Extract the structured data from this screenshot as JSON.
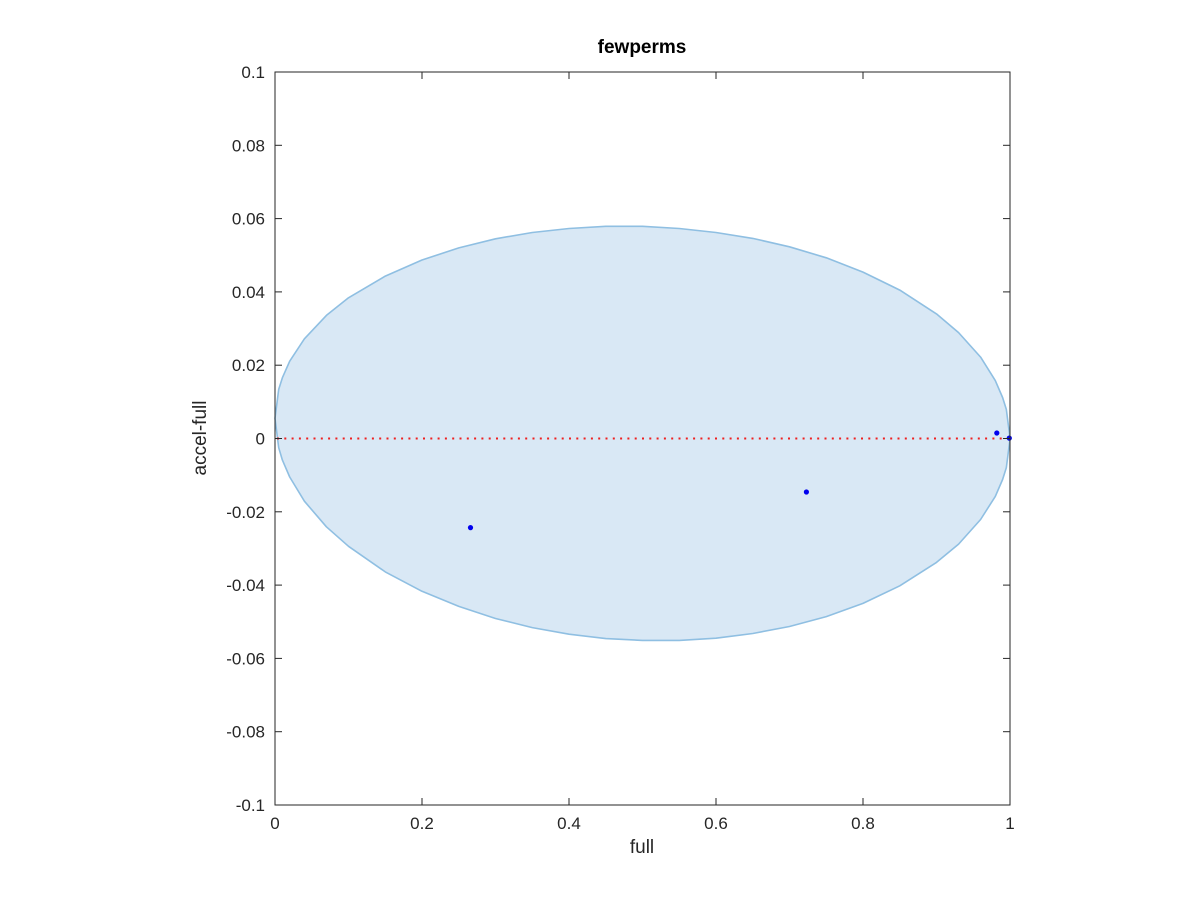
{
  "chart_data": {
    "type": "scatter",
    "title": "fewperms",
    "xlabel": "full",
    "ylabel": "accel-full",
    "xlim": [
      0,
      1
    ],
    "ylim": [
      -0.1,
      0.1
    ],
    "xticks": [
      0,
      0.2,
      0.4,
      0.6,
      0.8,
      1
    ],
    "xtick_labels": [
      "0",
      "0.2",
      "0.4",
      "0.6",
      "0.8",
      "1"
    ],
    "yticks": [
      0.1,
      0.08,
      0.06,
      0.04,
      0.02,
      0,
      -0.02,
      -0.04,
      -0.06,
      -0.08,
      -0.1
    ],
    "ytick_labels": [
      "0.1",
      "0.08",
      "0.06",
      "0.04",
      "0.02",
      "0",
      "-0.02",
      "-0.04",
      "-0.06",
      "-0.08",
      "-0.1"
    ],
    "grid": false,
    "legend": null,
    "box": true,
    "tick_direction": "in",
    "series": [
      {
        "name": "data-points",
        "type": "scatter",
        "marker": "point",
        "color": "#0000ee",
        "points": [
          [
            0.266,
            -0.0243
          ],
          [
            0.723,
            -0.0146
          ],
          [
            0.982,
            0.0015
          ],
          [
            0.999,
            0.0001
          ]
        ]
      },
      {
        "name": "zero-reference-line",
        "type": "line",
        "style": "dotted",
        "color": "#ee2020",
        "y": 0,
        "x_range": [
          0,
          1
        ]
      }
    ],
    "envelope": {
      "name": "confidence-envelope",
      "fill": "#d9e8f5",
      "stroke": "#8fbfe2",
      "x": [
        0,
        0.005,
        0.01,
        0.02,
        0.04,
        0.07,
        0.1,
        0.15,
        0.2,
        0.25,
        0.3,
        0.35,
        0.4,
        0.45,
        0.5,
        0.55,
        0.6,
        0.65,
        0.7,
        0.75,
        0.8,
        0.85,
        0.9,
        0.93,
        0.96,
        0.98,
        0.99,
        0.995,
        1
      ],
      "y_top": [
        0.0055,
        0.0134,
        0.0166,
        0.0211,
        0.0272,
        0.0336,
        0.0384,
        0.0443,
        0.0487,
        0.052,
        0.0545,
        0.0562,
        0.0573,
        0.0579,
        0.0579,
        0.0573,
        0.0562,
        0.0546,
        0.0523,
        0.0493,
        0.0454,
        0.0405,
        0.034,
        0.0289,
        0.0222,
        0.0158,
        0.0112,
        0.008,
        0.0002
      ],
      "y_bottom": [
        0.0055,
        -0.0025,
        -0.0059,
        -0.0105,
        -0.0171,
        -0.0241,
        -0.0294,
        -0.0364,
        -0.0417,
        -0.0458,
        -0.0491,
        -0.0516,
        -0.0534,
        -0.0546,
        -0.0551,
        -0.0551,
        -0.0545,
        -0.0532,
        -0.0513,
        -0.0486,
        -0.045,
        -0.0402,
        -0.0338,
        -0.0288,
        -0.0221,
        -0.0158,
        -0.0112,
        -0.008,
        -0.0002
      ]
    },
    "colors": {
      "axis": "#262626",
      "background": "#ffffff"
    }
  }
}
